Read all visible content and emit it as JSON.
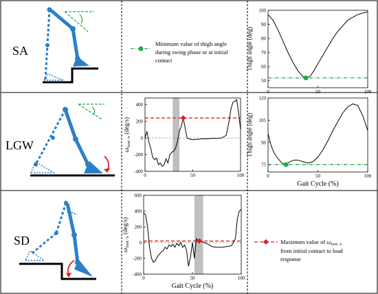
{
  "rows": [
    {
      "label": "SA"
    },
    {
      "label": "LGW"
    },
    {
      "label": "SD"
    }
  ],
  "legends": {
    "min_thigh": {
      "line1": "Minimum value of thigh angle",
      "line2": "during swing phase or at initial",
      "line3": "contact"
    },
    "max_omega": {
      "line1_pre": "Maximum value of ",
      "omega": "ω",
      "omega_sub": "foot−x",
      "line2": "from initial contact to load",
      "line3": "response"
    }
  },
  "axis_text": {
    "thigh_ylabel": "Thigh angle (deg)",
    "omega_ylabel_main": "ω",
    "omega_ylabel_sub": "foot−x",
    "omega_ylabel_unit": " (deg/s)",
    "gait_xlabel": "Gait Cycle (%)"
  },
  "colors": {
    "limb": "#2a7fc9",
    "min_marker": "#22aa44",
    "max_marker": "#e02020",
    "band": "#bfbfbf"
  },
  "chart_data": [
    {
      "id": "sa-thigh",
      "type": "line",
      "xlabel": "",
      "ylabel": "Thigh angle (deg)",
      "xlim": [
        0,
        100
      ],
      "ylim": [
        45,
        100
      ],
      "x_ticks": [
        "0",
        "50",
        "100"
      ],
      "y_ticks": [
        "50",
        "60",
        "70",
        "80",
        "90",
        "100"
      ],
      "series": [
        {
          "x": [
            0,
            5,
            10,
            15,
            20,
            25,
            30,
            35,
            38,
            42,
            46,
            50,
            55,
            60,
            65,
            70,
            75,
            80,
            85,
            90,
            95,
            100
          ],
          "y": [
            97,
            93,
            86,
            78,
            70,
            63,
            57,
            53,
            52,
            53,
            57,
            62,
            68,
            74,
            80,
            85,
            89,
            93,
            95,
            97,
            98,
            99
          ]
        }
      ],
      "reference_line": {
        "y": 52
      },
      "marker": {
        "x": 38,
        "y": 52
      }
    },
    {
      "id": "lgw-omega",
      "type": "line",
      "xlabel": "",
      "ylabel": "ω foot−x (deg/s)",
      "xlim": [
        0,
        100
      ],
      "ylim": [
        -400,
        480
      ],
      "x_ticks": [
        "0",
        "50",
        "100"
      ],
      "y_ticks": [
        "-400",
        "-200",
        "0",
        "200",
        "400"
      ],
      "band": [
        29,
        36
      ],
      "series": [
        {
          "x": [
            0,
            2,
            4,
            6,
            8,
            10,
            12,
            14,
            16,
            18,
            20,
            22,
            24,
            26,
            28,
            30,
            32,
            34,
            36,
            38,
            40,
            42,
            44,
            46,
            50,
            55,
            60,
            65,
            70,
            75,
            80,
            85,
            88,
            90,
            92,
            94,
            96,
            98,
            100
          ],
          "y": [
            0,
            80,
            -50,
            -120,
            -230,
            -260,
            -240,
            -320,
            -300,
            -340,
            -320,
            -250,
            -300,
            -200,
            -170,
            -160,
            -120,
            -40,
            80,
            140,
            240,
            120,
            0,
            -10,
            -20,
            -15,
            -10,
            -10,
            -5,
            -5,
            0,
            30,
            200,
            350,
            430,
            440,
            460,
            300,
            100
          ]
        }
      ],
      "reference_line": {
        "y": 240
      },
      "marker": {
        "x": 40,
        "y": 240
      }
    },
    {
      "id": "lgw-thigh",
      "type": "line",
      "xlabel": "Gait Cycle (%)",
      "ylabel": "Thigh angle (deg)",
      "xlim": [
        0,
        100
      ],
      "ylim": [
        70,
        120
      ],
      "x_ticks": [
        "0",
        "50",
        "100"
      ],
      "y_ticks": [
        "75",
        "90",
        "105",
        "120"
      ],
      "series": [
        {
          "x": [
            0,
            3,
            6,
            10,
            14,
            18,
            22,
            26,
            30,
            35,
            40,
            45,
            50,
            55,
            60,
            65,
            70,
            75,
            80,
            85,
            90,
            95,
            100
          ],
          "y": [
            96,
            88,
            83,
            79,
            76,
            75,
            77,
            78,
            78,
            77,
            76,
            77,
            80,
            85,
            91,
            98,
            104,
            110,
            114,
            116,
            115,
            108,
            98
          ]
        }
      ],
      "reference_line": {
        "y": 75
      },
      "marker": {
        "x": 18,
        "y": 75
      }
    },
    {
      "id": "sd-omega",
      "type": "line",
      "xlabel": "Gait Cycle (%)",
      "ylabel": "ω foot−x (deg/s)",
      "xlim": [
        0,
        100
      ],
      "ylim": [
        -400,
        600
      ],
      "x_ticks": [
        "0",
        "50",
        "100"
      ],
      "y_ticks": [
        "-400",
        "-200",
        "0",
        "200",
        "400",
        "600"
      ],
      "band": [
        52,
        61
      ],
      "series": [
        {
          "x": [
            0,
            2,
            4,
            6,
            8,
            10,
            12,
            14,
            16,
            18,
            20,
            22,
            24,
            26,
            28,
            30,
            32,
            34,
            36,
            38,
            40,
            42,
            44,
            46,
            48,
            50,
            52,
            54,
            56,
            58,
            60,
            62,
            64,
            66,
            70,
            75,
            80,
            85,
            90,
            94,
            96,
            98,
            100
          ],
          "y": [
            380,
            350,
            200,
            -50,
            -200,
            -250,
            -230,
            -180,
            -150,
            -120,
            -100,
            -60,
            -80,
            -30,
            -50,
            -20,
            -60,
            -10,
            -40,
            0,
            -60,
            -30,
            -100,
            -300,
            -180,
            0,
            -200,
            50,
            20,
            40,
            10,
            0,
            -10,
            -20,
            -50,
            -60,
            -60,
            -50,
            -40,
            50,
            300,
            400,
            420
          ]
        }
      ],
      "reference_line": {
        "y": 20
      },
      "marker": {
        "x": 57,
        "y": 20
      }
    }
  ]
}
